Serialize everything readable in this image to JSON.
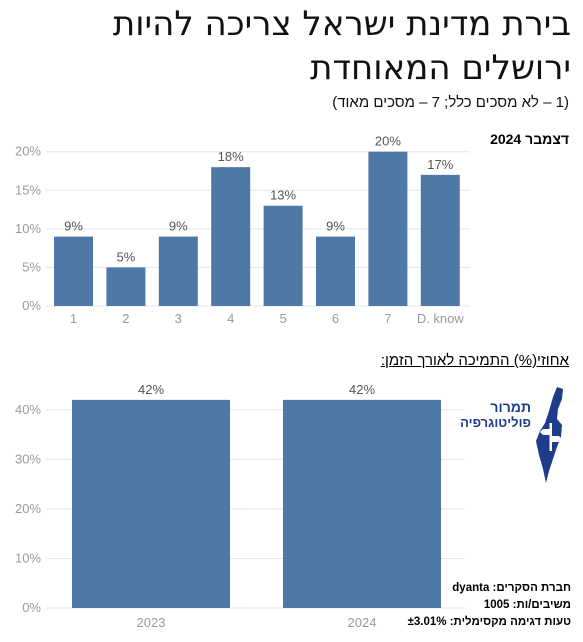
{
  "title": "בירת מדינת ישראל צריכה להיות ירושלים המאוחדת",
  "subtitle": "(1 – לא מסכים כלל; 7 – מסכים מאוד)",
  "period_label": "דצמבר 2024",
  "trend_caption": "אחוזי(%) התמיכה לאורך הזמן:",
  "logo": {
    "line1": "תמרור",
    "line2": "פוליטוגרפיה",
    "icon": "israel-map-with-signpost-icon"
  },
  "footer": {
    "line1": "חברת הסקרים: dyanta",
    "line2": "משיבים/ות: 1005",
    "line3": "טעות דגימה מקסימלית: ±3.01%"
  },
  "colors": {
    "bar": "#4e79a7",
    "grid": "#e6e6e6",
    "tick": "#9a9a9a",
    "logo": "#1f3c8a"
  },
  "chart_data": [
    {
      "type": "bar",
      "categories": [
        "1",
        "2",
        "3",
        "4",
        "5",
        "6",
        "7",
        "D. know"
      ],
      "values": [
        9,
        5,
        9,
        18,
        13,
        9,
        20,
        17
      ],
      "value_labels": [
        "9%",
        "5%",
        "9%",
        "18%",
        "13%",
        "9%",
        "20%",
        "17%"
      ],
      "yticks": [
        "0%",
        "5%",
        "10%",
        "15%",
        "20%"
      ],
      "ylim": [
        0,
        21
      ],
      "grid": true
    },
    {
      "type": "bar",
      "categories": [
        "2023",
        "2024"
      ],
      "values": [
        42,
        42
      ],
      "value_labels": [
        "42%",
        "42%"
      ],
      "yticks": [
        "0%",
        "10%",
        "20%",
        "30%",
        "40%"
      ],
      "ylim": [
        0,
        45
      ],
      "grid": true
    }
  ]
}
